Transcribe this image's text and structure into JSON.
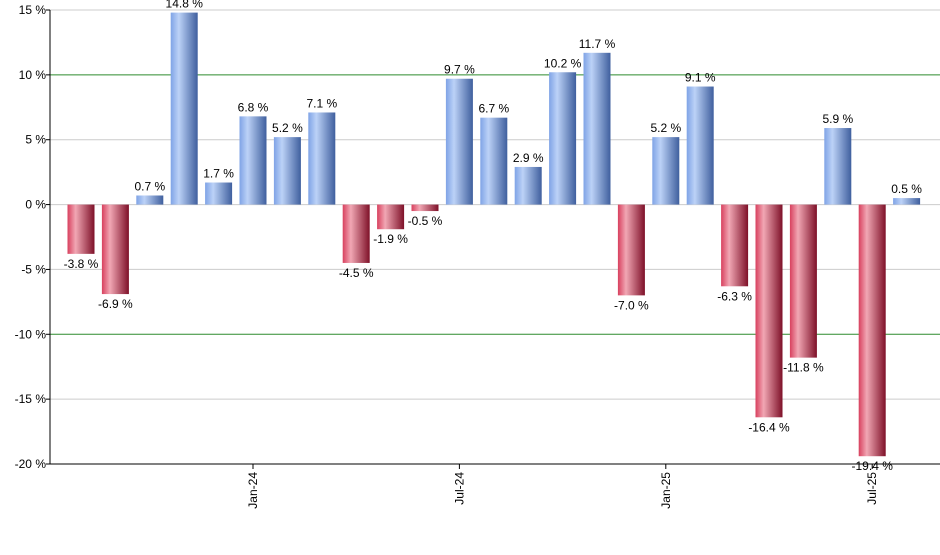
{
  "chart_data": {
    "type": "bar",
    "y_unit_suffix": " %",
    "ylim": [
      -20,
      15
    ],
    "yticks": [
      -20,
      -15,
      -10,
      -5,
      0,
      5,
      10,
      15
    ],
    "highlight_lines": [
      10,
      -10
    ],
    "grid": true,
    "values": [
      -3.8,
      -6.9,
      0.7,
      14.8,
      1.7,
      6.8,
      5.2,
      7.1,
      -4.5,
      -1.9,
      -0.5,
      9.7,
      6.7,
      2.9,
      10.2,
      11.7,
      -7.0,
      5.2,
      9.1,
      -6.3,
      -16.4,
      -11.8,
      5.9,
      -19.4,
      0.5
    ],
    "labels": [
      "-3.8 %",
      "-6.9 %",
      "0.7 %",
      "14.8 %",
      "1.7 %",
      "6.8 %",
      "5.2 %",
      "7.1 %",
      "-4.5 %",
      "-1.9 %",
      "-0.5 %",
      "9.7 %",
      "6.7 %",
      "2.9 %",
      "10.2 %",
      "11.7 %",
      "-7.0 %",
      "5.2 %",
      "9.1 %",
      "-6.3 %",
      "-16.4 %",
      "-11.8 %",
      "5.9 %",
      "-19.4 %",
      "0.5 %"
    ],
    "x_ticks": [
      {
        "label": "Jan-24",
        "bar_index": 5
      },
      {
        "label": "Jul-24",
        "bar_index": 11
      },
      {
        "label": "Jan-25",
        "bar_index": 17
      },
      {
        "label": "Jul-25",
        "bar_index": 23
      }
    ],
    "colors": {
      "positive_light": "#bcd2f7",
      "positive_mid": "#7fa3e6",
      "positive_dark": "#3f5f9e",
      "negative_light": "#f1a7b4",
      "negative_mid": "#d8405e",
      "negative_dark": "#7e1028",
      "highlight_line": "#2e8b2e",
      "grid": "#cccccc",
      "axis": "#000000"
    }
  }
}
